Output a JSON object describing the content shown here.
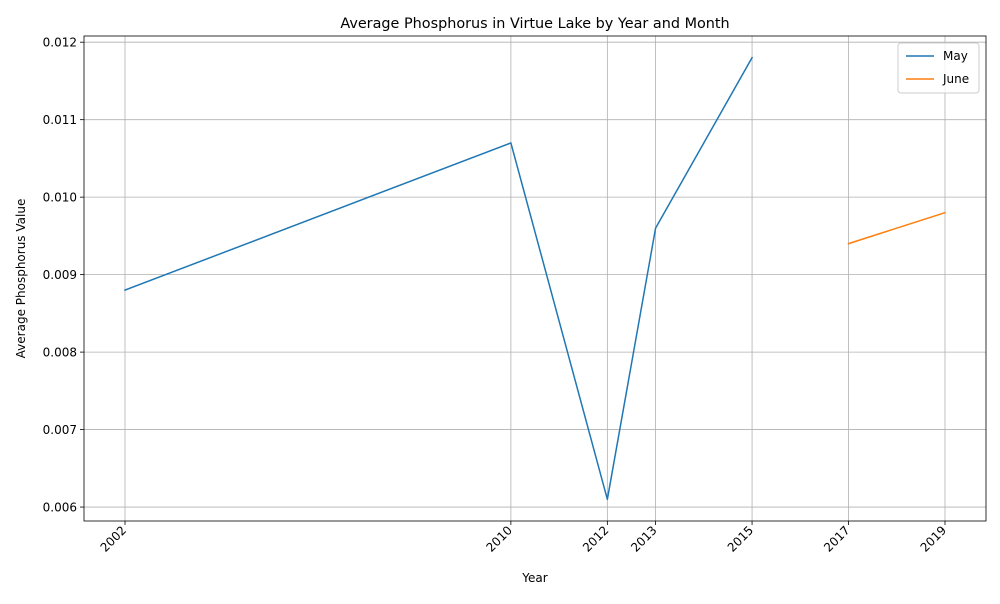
{
  "chart_data": {
    "type": "line",
    "title": "Average Phosphorus in Virtue Lake by Year and Month",
    "xlabel": "Year",
    "ylabel": "Average Phosphorus Value",
    "x_ticks": [
      "2002",
      "2010",
      "2012",
      "2013",
      "2015",
      "2017",
      "2019"
    ],
    "y_ticks": [
      "0.006",
      "0.007",
      "0.008",
      "0.009",
      "0.010",
      "0.011",
      "0.012"
    ],
    "xlim": [
      2001.15,
      2019.85
    ],
    "ylim": [
      0.00582,
      0.01208
    ],
    "grid": true,
    "legend_position": "top-right",
    "series": [
      {
        "name": "May",
        "color": "#1f77b4",
        "x": [
          2002,
          2010,
          2012,
          2013,
          2015
        ],
        "y": [
          0.0088,
          0.0107,
          0.0061,
          0.0096,
          0.0118
        ]
      },
      {
        "name": "June",
        "color": "#ff7f0e",
        "x": [
          2017,
          2019
        ],
        "y": [
          0.0094,
          0.0098
        ]
      }
    ]
  }
}
